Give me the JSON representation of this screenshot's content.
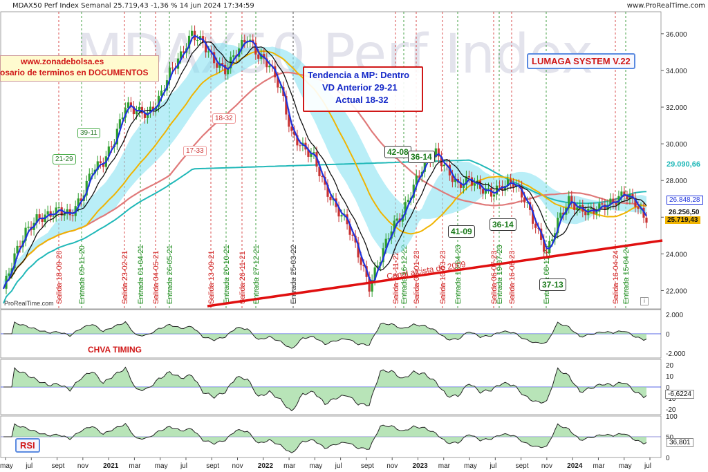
{
  "header": {
    "title": "MDAX50 Perf Index Semanal 25.719,43 -1,36 % 14 jun 2024 17:34:59",
    "source": "www.ProRealTime.com",
    "watermark": "MDAX50 Perf Index",
    "footer_source": "ProRealTime.com"
  },
  "boxes": {
    "site": "www.zonadebolsa.es",
    "glossary": "osario de terminos en DOCUMENTOS",
    "trend_line1": "Tendencia a MP: Dentro",
    "trend_line2": "VD Anterior 29-21",
    "trend_line3": "Actual 18-32",
    "system": "LUMAGA SYSTEM V.22",
    "chva": "CHVA TIMING",
    "rsi": "RSI"
  },
  "colors": {
    "price_up": "#2e9e2e",
    "price_down": "#c83232",
    "fast_ma": "#1e32dc",
    "kijun_line": "#111111",
    "ma50": "#f0b400",
    "ma100": "#e07a7a",
    "ma200": "#20b8b8",
    "trendline": "#e01010",
    "cloud_bull": "#7fe0f0",
    "cloud_bear": "#f0a0a0",
    "entry_line": "#1a8a1a",
    "exit_line": "#d02020"
  },
  "chart_data": [
    {
      "type": "line",
      "panel": "price",
      "x_ticks": [
        "may",
        "jul",
        "sept",
        "nov",
        "2021",
        "mar",
        "may",
        "jul",
        "sept",
        "nov",
        "2022",
        "mar",
        "may",
        "jul",
        "sept",
        "nov",
        "2023",
        "mar",
        "may",
        "jul",
        "sept",
        "nov",
        "2024",
        "mar",
        "may",
        "jul"
      ],
      "y_ticks": [
        "36.000",
        "34.000",
        "32.000",
        "30.000",
        "28.000",
        "26.000",
        "24.000",
        "22.000"
      ],
      "ylim": [
        21000,
        37200
      ],
      "price_labels": [
        {
          "text": "29.090,66",
          "value": 29090.66,
          "color": "#20b8b8"
        },
        {
          "text": "26.848,28",
          "value": 26848.28,
          "color": "#1e32dc"
        },
        {
          "text": "26.256,50",
          "value": 26256.5,
          "color": "#111111"
        },
        {
          "text": "25.719,43",
          "value": 25719.43,
          "color": "#f0b400"
        }
      ],
      "series": [
        {
          "name": "",
          "values": [
            22100,
            23900,
            25200,
            25900,
            26100,
            26400,
            26100,
            27000,
            28600,
            29000,
            30200,
            32100,
            31800,
            31600,
            32400,
            33900,
            34800,
            36000,
            35500,
            34500,
            34000,
            35000,
            35800,
            34800,
            34300,
            33000,
            30500,
            29800,
            29300,
            27600,
            26500,
            25700,
            24000,
            22200,
            23800,
            25400,
            26200,
            27700,
            29000,
            29500,
            28600,
            27700,
            28100,
            27600,
            27300,
            27700,
            27900,
            27000,
            25500,
            24000,
            25800,
            26900,
            26400,
            26300,
            26600,
            26800,
            27300,
            26800,
            25700
          ]
        }
      ],
      "signals": [
        {
          "label": "Salida 18-09-20",
          "kind": "exit"
        },
        {
          "label": "Entrada 09-11-20",
          "kind": "entry"
        },
        {
          "label": "Salida 23-02-21",
          "kind": "exit"
        },
        {
          "label": "Entrada 01-04-21",
          "kind": "entry"
        },
        {
          "label": "Salida 04-05-21",
          "kind": "exit"
        },
        {
          "label": "Entrada 26-05-21",
          "kind": "entry"
        },
        {
          "label": "Salida 13-09-21",
          "kind": "exit"
        },
        {
          "label": "Entrada 20-10-21",
          "kind": "entry"
        },
        {
          "label": "Salida 26-11-21",
          "kind": "exit"
        },
        {
          "label": "Entrada 27-12-21",
          "kind": "entry"
        },
        {
          "label": "Entrada 25-03-22",
          "kind": "neutral"
        },
        {
          "label": "Salida 11-11-22",
          "kind": "exit"
        },
        {
          "label": "Entrada 16-12-22",
          "kind": "entry"
        },
        {
          "label": "Salida 06-01-23",
          "kind": "exit"
        },
        {
          "label": "Salida 10-03-23",
          "kind": "exit"
        },
        {
          "label": "Entrada 13-04-23",
          "kind": "entry"
        },
        {
          "label": "Salida 06-07-23",
          "kind": "exit"
        },
        {
          "label": "Entrada 19-07-23",
          "kind": "entry"
        },
        {
          "label": "Salida 16-08-23",
          "kind": "exit"
        },
        {
          "label": "Entrada 08-11-23",
          "kind": "entry"
        },
        {
          "label": "Salida 16-04-24",
          "kind": "exit"
        },
        {
          "label": "Entrada 15-04-24",
          "kind": "entry"
        }
      ],
      "annotations": [
        "21-29",
        "39-11",
        "17-33",
        "18-32",
        "42-08",
        "36-14",
        "41-09",
        "36-14",
        "37-13",
        "Canal alcista de 2009"
      ]
    },
    {
      "type": "area",
      "panel": "chva_timing",
      "y_ticks": [
        "2.000",
        "0",
        "-2.000"
      ],
      "ylim": [
        -2500,
        2500
      ]
    },
    {
      "type": "area",
      "panel": "oscillator",
      "y_ticks": [
        "20",
        "10",
        "0",
        "-10",
        "-20"
      ],
      "ylim": [
        -25,
        25
      ],
      "last_value_label": "-6,6224",
      "last_value": -6.6224
    },
    {
      "type": "area",
      "panel": "rsi",
      "y_ticks": [
        "100",
        "50",
        "0"
      ],
      "ylim": [
        0,
        100
      ],
      "last_value_label": "36,801",
      "last_value": 36.801
    }
  ]
}
